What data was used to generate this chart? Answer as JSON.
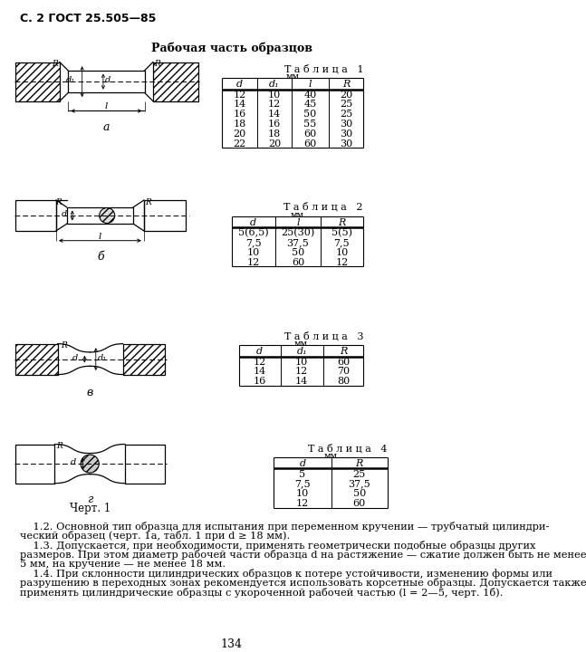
{
  "page_header": "С. 2 ГОСТ 25.505—85",
  "section_title": "Рабочая часть образцов",
  "page_number": "134",
  "table1": {
    "title": "Т а б л и ц а   1",
    "unit": "мм",
    "headers": [
      "d",
      "d₁",
      "l",
      "R"
    ],
    "rows": [
      [
        "12",
        "10",
        "40",
        "20"
      ],
      [
        "14",
        "12",
        "45",
        "25"
      ],
      [
        "16",
        "14",
        "50",
        "25"
      ],
      [
        "18",
        "16",
        "55",
        "30"
      ],
      [
        "20",
        "18",
        "60",
        "30"
      ],
      [
        "22",
        "20",
        "60",
        "30"
      ]
    ]
  },
  "table2": {
    "title": "Т а б л и ц а   2",
    "unit": "мм",
    "headers": [
      "d",
      "l",
      "R"
    ],
    "rows": [
      [
        "5(6,5)",
        "25(30)",
        "5(5)"
      ],
      [
        "7,5",
        "37,5",
        "7,5"
      ],
      [
        "10",
        "50",
        "10"
      ],
      [
        "12",
        "60",
        "12"
      ]
    ]
  },
  "table3": {
    "title": "Т а б л и ц а   3",
    "unit": "мм",
    "headers": [
      "d",
      "d₁",
      "R"
    ],
    "rows": [
      [
        "12",
        "10",
        "60"
      ],
      [
        "14",
        "12",
        "70"
      ],
      [
        "16",
        "14",
        "80"
      ]
    ]
  },
  "table4": {
    "title": "Т а б л и ц а   4",
    "unit": "мм",
    "headers": [
      "d",
      "R"
    ],
    "rows": [
      [
        "5",
        "25"
      ],
      [
        "7,5",
        "37,5"
      ],
      [
        "10",
        "50"
      ],
      [
        "12",
        "60"
      ]
    ]
  },
  "figure_label": "Черт. 1",
  "text_block": [
    "    1.2. Основной тип образца для испытания при переменном кручении — трубчатый цилиндри-",
    "ческий образец (черт. 1а, табл. 1 при d ≥ 18 мм).",
    "    1.3. Допускается, при необходимости, применять геометрически подобные образцы других",
    "размеров. При этом диаметр рабочей части образца d на растяжение — сжатие должен быть не менее",
    "5 мм, на кручение — не менее 18 мм.",
    "    1.4. При склонности цилиндрических образцов к потере устойчивости, изменению формы или",
    "разрушению в переходных зонах рекомендуется использовать корсетные образцы. Допускается также",
    "применять цилиндрические образцы с укороченной рабочей частью (l = 2—5, черт. 1б)."
  ],
  "bg_color": "#ffffff"
}
